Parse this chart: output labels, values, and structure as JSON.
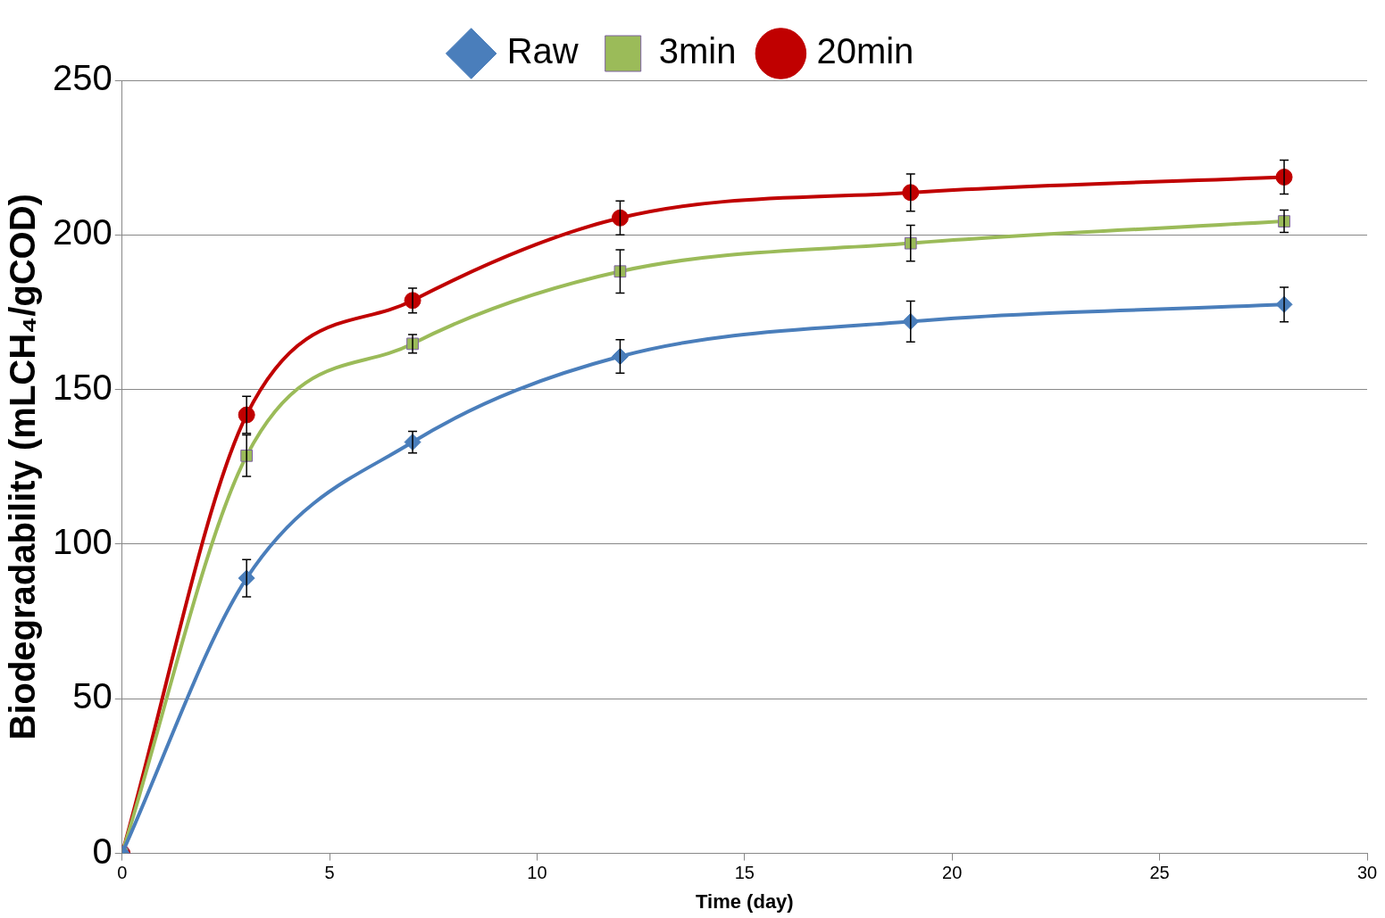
{
  "chart_data": {
    "type": "line",
    "xlabel": "Time (day)",
    "ylabel": "Biodegradability (mLCH₄/gCOD)",
    "x": [
      0,
      3,
      7,
      12,
      19,
      28
    ],
    "series": [
      {
        "name": "Raw",
        "color": "#4a7ebb",
        "marker": "diamond",
        "values": [
          0,
          89,
          133,
          160.7,
          172,
          177.5
        ],
        "errors": [
          null,
          6,
          3.5,
          5.4,
          6.6,
          5.6
        ]
      },
      {
        "name": "3min",
        "color": "#9bbb59",
        "marker": "square",
        "values": [
          0,
          128.6,
          164.8,
          188.2,
          197.3,
          204.4
        ],
        "errors": [
          null,
          6.7,
          3,
          7,
          5.8,
          3.6
        ]
      },
      {
        "name": "20min",
        "color": "#c00000",
        "marker": "circle",
        "values": [
          0,
          141.8,
          178.8,
          205.5,
          213.7,
          218.7
        ],
        "errors": [
          null,
          6,
          4,
          5.5,
          6,
          5.5
        ]
      }
    ],
    "xlim": [
      0,
      30
    ],
    "xticks": [
      0,
      5,
      10,
      15,
      20,
      25,
      30
    ],
    "ylim": [
      0,
      250
    ],
    "yticks": [
      0,
      50,
      100,
      150,
      200,
      250
    ],
    "grid": "y",
    "legend": "top"
  }
}
